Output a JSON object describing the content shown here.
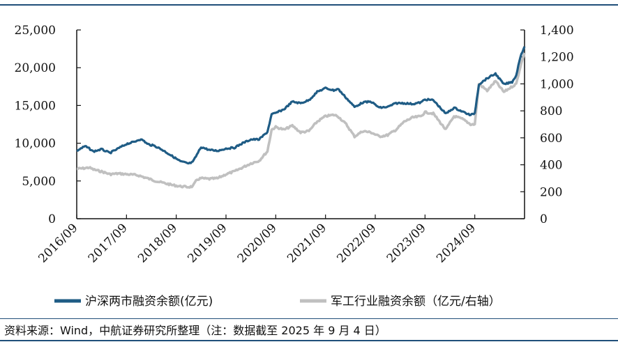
{
  "chart_data": {
    "type": "line",
    "title": "",
    "x_tick_labels": [
      "2016/09",
      "2017/09",
      "2018/09",
      "2019/09",
      "2020/09",
      "2021/09",
      "2022/09",
      "2023/09",
      "2024/09"
    ],
    "y_left": {
      "lim": [
        0,
        25000
      ],
      "ticks": [
        "0",
        "5,000",
        "10,000",
        "15,000",
        "20,000",
        "25,000"
      ]
    },
    "y_right": {
      "lim": [
        0,
        1400
      ],
      "ticks": [
        "0",
        "200",
        "400",
        "600",
        "800",
        "1,000",
        "1,200",
        "1,400"
      ]
    },
    "grid": false,
    "legend_position": "bottom",
    "series": [
      {
        "name": "沪深两市融资余额(亿元)",
        "axis": "left",
        "color": "#1f5c85",
        "points": [
          [
            "2016-09",
            9000
          ],
          [
            "2016-11",
            9600
          ],
          [
            "2016-12",
            9300
          ],
          [
            "2017-01",
            8900
          ],
          [
            "2017-03",
            9200
          ],
          [
            "2017-05",
            8700
          ],
          [
            "2017-07",
            9300
          ],
          [
            "2017-09",
            9900
          ],
          [
            "2017-11",
            10200
          ],
          [
            "2017-12",
            10500
          ],
          [
            "2018-01",
            10400
          ],
          [
            "2018-02",
            9900
          ],
          [
            "2018-04",
            9600
          ],
          [
            "2018-06",
            9000
          ],
          [
            "2018-08",
            8300
          ],
          [
            "2018-10",
            7600
          ],
          [
            "2018-12",
            7300
          ],
          [
            "2019-01",
            7500
          ],
          [
            "2019-02",
            8500
          ],
          [
            "2019-03",
            9500
          ],
          [
            "2019-05",
            9100
          ],
          [
            "2019-07",
            9000
          ],
          [
            "2019-09",
            9300
          ],
          [
            "2019-11",
            9400
          ],
          [
            "2020-01",
            10000
          ],
          [
            "2020-03",
            10500
          ],
          [
            "2020-05",
            10500
          ],
          [
            "2020-07",
            11500
          ],
          [
            "2020-08",
            13800
          ],
          [
            "2020-09",
            14000
          ],
          [
            "2020-11",
            14500
          ],
          [
            "2021-01",
            15500
          ],
          [
            "2021-03",
            15300
          ],
          [
            "2021-05",
            15700
          ],
          [
            "2021-07",
            16800
          ],
          [
            "2021-09",
            17300
          ],
          [
            "2021-11",
            17000
          ],
          [
            "2021-12",
            17200
          ],
          [
            "2022-02",
            16000
          ],
          [
            "2022-04",
            14800
          ],
          [
            "2022-06",
            15400
          ],
          [
            "2022-08",
            15500
          ],
          [
            "2022-10",
            14700
          ],
          [
            "2022-12",
            14800
          ],
          [
            "2023-02",
            15300
          ],
          [
            "2023-04",
            15300
          ],
          [
            "2023-06",
            15200
          ],
          [
            "2023-08",
            15400
          ],
          [
            "2023-09",
            15800
          ],
          [
            "2023-11",
            15700
          ],
          [
            "2024-01",
            14500
          ],
          [
            "2024-02",
            13900
          ],
          [
            "2024-04",
            14700
          ],
          [
            "2024-06",
            14200
          ],
          [
            "2024-08",
            13700
          ],
          [
            "2024-09",
            14000
          ],
          [
            "2024-10",
            17800
          ],
          [
            "2024-12",
            18600
          ],
          [
            "2025-02",
            19200
          ],
          [
            "2025-04",
            17800
          ],
          [
            "2025-06",
            18100
          ],
          [
            "2025-07",
            19000
          ],
          [
            "2025-08",
            21500
          ],
          [
            "2025-09",
            22800
          ]
        ]
      },
      {
        "name": "军工行业融资余额（亿元/右轴）",
        "axis": "right",
        "color": "#c0c0c0",
        "points": [
          [
            "2016-09",
            370
          ],
          [
            "2016-11",
            375
          ],
          [
            "2016-12",
            380
          ],
          [
            "2017-01",
            365
          ],
          [
            "2017-03",
            350
          ],
          [
            "2017-05",
            330
          ],
          [
            "2017-07",
            335
          ],
          [
            "2017-09",
            330
          ],
          [
            "2017-11",
            325
          ],
          [
            "2017-12",
            320
          ],
          [
            "2018-01",
            310
          ],
          [
            "2018-02",
            300
          ],
          [
            "2018-04",
            280
          ],
          [
            "2018-06",
            265
          ],
          [
            "2018-08",
            250
          ],
          [
            "2018-10",
            240
          ],
          [
            "2018-12",
            235
          ],
          [
            "2019-01",
            240
          ],
          [
            "2019-02",
            290
          ],
          [
            "2019-03",
            300
          ],
          [
            "2019-05",
            295
          ],
          [
            "2019-07",
            300
          ],
          [
            "2019-09",
            330
          ],
          [
            "2019-11",
            350
          ],
          [
            "2020-01",
            380
          ],
          [
            "2020-03",
            410
          ],
          [
            "2020-05",
            430
          ],
          [
            "2020-07",
            500
          ],
          [
            "2020-08",
            660
          ],
          [
            "2020-09",
            680
          ],
          [
            "2020-11",
            660
          ],
          [
            "2021-01",
            690
          ],
          [
            "2021-03",
            640
          ],
          [
            "2021-05",
            650
          ],
          [
            "2021-07",
            720
          ],
          [
            "2021-09",
            760
          ],
          [
            "2021-11",
            770
          ],
          [
            "2021-12",
            760
          ],
          [
            "2022-02",
            700
          ],
          [
            "2022-04",
            610
          ],
          [
            "2022-06",
            650
          ],
          [
            "2022-08",
            640
          ],
          [
            "2022-10",
            610
          ],
          [
            "2022-12",
            620
          ],
          [
            "2023-02",
            660
          ],
          [
            "2023-04",
            720
          ],
          [
            "2023-06",
            750
          ],
          [
            "2023-08",
            760
          ],
          [
            "2023-09",
            790
          ],
          [
            "2023-11",
            780
          ],
          [
            "2024-01",
            700
          ],
          [
            "2024-02",
            660
          ],
          [
            "2024-04",
            760
          ],
          [
            "2024-06",
            740
          ],
          [
            "2024-08",
            700
          ],
          [
            "2024-09",
            700
          ],
          [
            "2024-10",
            1000
          ],
          [
            "2024-12",
            950
          ],
          [
            "2025-02",
            1020
          ],
          [
            "2025-04",
            940
          ],
          [
            "2025-06",
            980
          ],
          [
            "2025-07",
            1000
          ],
          [
            "2025-08",
            1130
          ],
          [
            "2025-09",
            1230
          ]
        ]
      }
    ]
  },
  "source": "资料来源：Wind，中航证券研究所整理（注：数据截至 2025 年 9 月 4 日）"
}
